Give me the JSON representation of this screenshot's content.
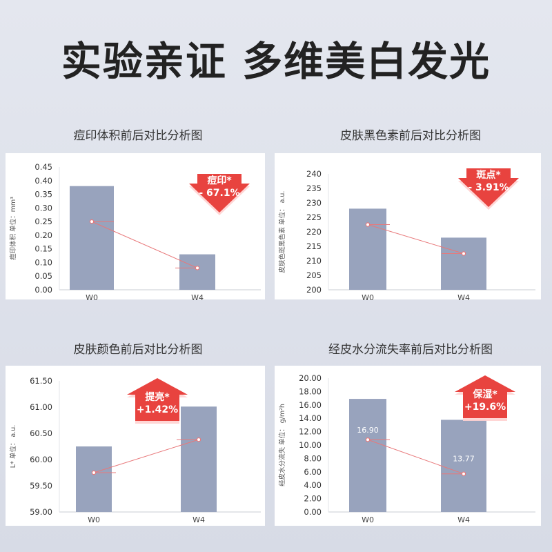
{
  "title": "实验亲证  多维美白发光",
  "chart_data": [
    {
      "type": "bar",
      "title": "痘印体积前后对比分析图",
      "ylabel": "痘印体积 单位：mm³",
      "categories": [
        "W0",
        "W4"
      ],
      "values": [
        0.38,
        0.13
      ],
      "ylim": [
        0,
        0.45
      ],
      "yticks": [
        "0.45",
        "0.40",
        "0.35",
        "0.30",
        "0.25",
        "0.20",
        "0.15",
        "0.10",
        "0.05",
        "0.00"
      ],
      "line_values": [
        0.25,
        0.08
      ],
      "badge": {
        "label": "痘印*",
        "value": "- 67.1%",
        "direction": "down"
      },
      "bar_color": "#98a3bd",
      "line_color": "#e8787a"
    },
    {
      "type": "bar",
      "title": "皮肤黑色素前后对比分析图",
      "ylabel": "皮肤色斑黑色素 单位： a.u.",
      "categories": [
        "W0",
        "W4"
      ],
      "values": [
        228,
        218
      ],
      "ylim": [
        200,
        240
      ],
      "yticks": [
        "240",
        "235",
        "230",
        "225",
        "220",
        "215",
        "210",
        "205",
        "200"
      ],
      "line_values": [
        222.5,
        212.5
      ],
      "badge": {
        "label": "斑点*",
        "value": "- 3.91%",
        "direction": "down"
      },
      "bar_color": "#98a3bd",
      "line_color": "#e8787a"
    },
    {
      "type": "bar",
      "title": "皮肤颜色前后对比分析图",
      "ylabel": "L* 单位： a.u.",
      "categories": [
        "W0",
        "W4"
      ],
      "values": [
        60.25,
        61.01
      ],
      "ylim": [
        59.0,
        61.5
      ],
      "yticks": [
        "61.50",
        "61.00",
        "60.50",
        "60.00",
        "59.50",
        "59.00"
      ],
      "line_values": [
        59.75,
        60.38
      ],
      "badge": {
        "label": "提亮*",
        "value": "+1.42%",
        "direction": "up"
      },
      "bar_color": "#98a3bd",
      "line_color": "#e8787a"
    },
    {
      "type": "bar",
      "title": "经皮水分流失率前后对比分析图",
      "ylabel": "经皮水分流失 单位： g/m²h",
      "categories": [
        "W0",
        "W4"
      ],
      "values": [
        16.9,
        13.77
      ],
      "ylim": [
        0,
        20
      ],
      "yticks": [
        "20.00",
        "18.00",
        "16.00",
        "14.00",
        "12.00",
        "10.00",
        "8.00",
        "6.00",
        "4.00",
        "2.00",
        "0.00"
      ],
      "line_values": [
        10.8,
        5.7
      ],
      "data_labels": [
        "16.90",
        "13.77"
      ],
      "badge": {
        "label": "保湿*",
        "value": "+19.6%",
        "direction": "up"
      },
      "bar_color": "#98a3bd",
      "line_color": "#e8787a"
    }
  ]
}
